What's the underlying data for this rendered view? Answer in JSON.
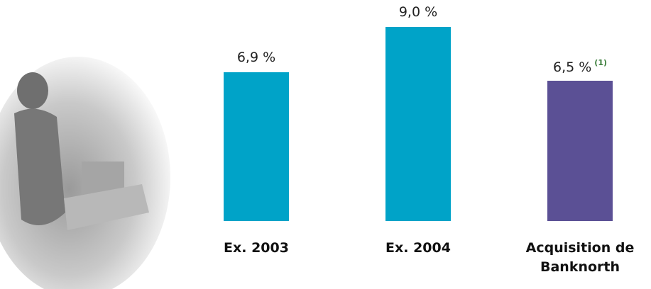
{
  "chart_data": {
    "type": "bar",
    "categories": [
      "Ex. 2003",
      "Ex. 2004",
      "Acquisition de Banknorth"
    ],
    "values": [
      6.9,
      9.0,
      6.5
    ],
    "value_labels": [
      "6,9 %",
      "9,0 %",
      "6,5 %"
    ],
    "colors": [
      "#00a3c8",
      "#00a3c8",
      "#5b5095"
    ],
    "annotations": [
      {
        "at": 2,
        "text": "(1)"
      }
    ]
  }
}
